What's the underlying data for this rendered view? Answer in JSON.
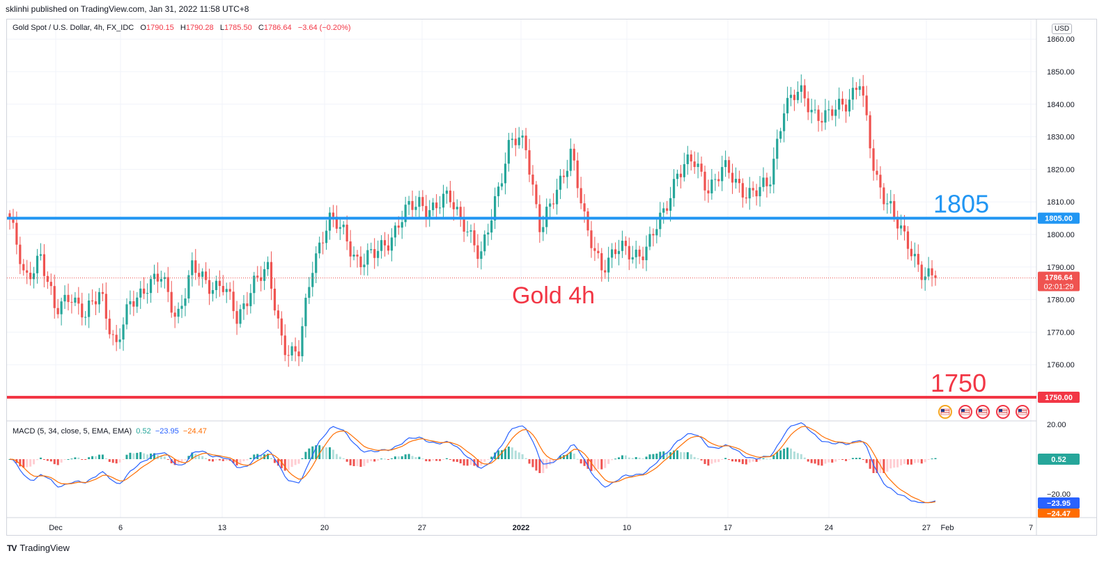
{
  "publisher_line": "sklinhi published on TradingView.com, Jan 31, 2022 11:58 UTC+8",
  "brand": {
    "logo": "TV",
    "name": "TradingView"
  },
  "legend": {
    "symbol": "Gold Spot / U.S. Dollar, 4h, FX_IDC",
    "o_label": "O",
    "o": "1790.15",
    "h_label": "H",
    "h": "1790.28",
    "l_label": "L",
    "l": "1785.50",
    "c_label": "C",
    "c": "1786.64",
    "change": "−3.64 (−0.20%)"
  },
  "currency": "USD",
  "macd_legend": {
    "title": "MACD (5, 34, close, 5, EMA, EMA)",
    "hist": "0.52",
    "macd": "−23.95",
    "signal": "−24.47"
  },
  "colors": {
    "up": "#26a69a",
    "down": "#ef5350",
    "line_1805": "#2196f3",
    "line_1750": "#f23645",
    "macd_line": "#2962ff",
    "signal_line": "#ff6d00",
    "grid": "#f0f3fa"
  },
  "chart_data": {
    "type": "candlestick",
    "title": "Gold 4h",
    "ylim": [
      1750,
      1865
    ],
    "y_ticks": [
      "1860.00",
      "1850.00",
      "1840.00",
      "1830.00",
      "1820.00",
      "1810.00",
      "1800.00",
      "1790.00",
      "1780.00",
      "1770.00",
      "1760.00"
    ],
    "x_ticks": [
      "Dec",
      "6",
      "13",
      "20",
      "27",
      "2022",
      "10",
      "17",
      "24",
      "27",
      "Feb",
      "7"
    ],
    "levels": [
      {
        "label": "1805",
        "value": 1805,
        "axis_label": "1805.00",
        "color": "#2196f3"
      },
      {
        "label": "1750",
        "value": 1750,
        "axis_label": "1750.00",
        "color": "#f23645"
      }
    ],
    "last_price": {
      "value": 1786.64,
      "label": "1786.64",
      "countdown": "02:01:29"
    },
    "close_path": [
      {
        "date": "2021-11-26",
        "close": 1805
      },
      {
        "date": "2021-11-28",
        "close": 1785
      },
      {
        "date": "2021-11-29",
        "close": 1795
      },
      {
        "date": "2021-11-30",
        "close": 1775
      },
      {
        "date": "2021-12-01",
        "close": 1783
      },
      {
        "date": "2021-12-02",
        "close": 1774
      },
      {
        "date": "2021-12-03",
        "close": 1783
      },
      {
        "date": "2021-12-04",
        "close": 1765
      },
      {
        "date": "2021-12-06",
        "close": 1779
      },
      {
        "date": "2021-12-07",
        "close": 1785
      },
      {
        "date": "2021-12-08",
        "close": 1786
      },
      {
        "date": "2021-12-09",
        "close": 1775
      },
      {
        "date": "2021-12-10",
        "close": 1789
      },
      {
        "date": "2021-12-11",
        "close": 1785
      },
      {
        "date": "2021-12-13",
        "close": 1785
      },
      {
        "date": "2021-12-14",
        "close": 1773
      },
      {
        "date": "2021-12-15",
        "close": 1786
      },
      {
        "date": "2021-12-16",
        "close": 1788
      },
      {
        "date": "2021-12-17",
        "close": 1767
      },
      {
        "date": "2021-12-17T16",
        "close": 1762
      },
      {
        "date": "2021-12-18",
        "close": 1792
      },
      {
        "date": "2021-12-19",
        "close": 1805
      },
      {
        "date": "2021-12-20",
        "close": 1800
      },
      {
        "date": "2021-12-21",
        "close": 1792
      },
      {
        "date": "2021-12-22",
        "close": 1793
      },
      {
        "date": "2021-12-23",
        "close": 1799
      },
      {
        "date": "2021-12-24",
        "close": 1806
      },
      {
        "date": "2021-12-25",
        "close": 1810
      },
      {
        "date": "2021-12-27",
        "close": 1808
      },
      {
        "date": "2021-12-28",
        "close": 1811
      },
      {
        "date": "2021-12-29",
        "close": 1804
      },
      {
        "date": "2021-12-30",
        "close": 1791
      },
      {
        "date": "2021-12-31",
        "close": 1812
      },
      {
        "date": "2022-01-01",
        "close": 1828
      },
      {
        "date": "2022-01-02",
        "close": 1828
      },
      {
        "date": "2022-01-03",
        "close": 1801
      },
      {
        "date": "2022-01-04",
        "close": 1812
      },
      {
        "date": "2022-01-06",
        "close": 1827
      },
      {
        "date": "2022-01-07",
        "close": 1800
      },
      {
        "date": "2022-01-08",
        "close": 1791
      },
      {
        "date": "2022-01-09",
        "close": 1795
      },
      {
        "date": "2022-01-10",
        "close": 1794
      },
      {
        "date": "2022-01-11",
        "close": 1796
      },
      {
        "date": "2022-01-12",
        "close": 1805
      },
      {
        "date": "2022-01-13",
        "close": 1820
      },
      {
        "date": "2022-01-14",
        "close": 1822
      },
      {
        "date": "2022-01-15",
        "close": 1815
      },
      {
        "date": "2022-01-17",
        "close": 1820
      },
      {
        "date": "2022-01-18",
        "close": 1815
      },
      {
        "date": "2022-01-19",
        "close": 1813
      },
      {
        "date": "2022-01-20",
        "close": 1814
      },
      {
        "date": "2022-01-21",
        "close": 1840
      },
      {
        "date": "2022-01-22",
        "close": 1843
      },
      {
        "date": "2022-01-23",
        "close": 1838
      },
      {
        "date": "2022-01-24",
        "close": 1836
      },
      {
        "date": "2022-01-25",
        "close": 1840
      },
      {
        "date": "2022-01-26",
        "close": 1848
      },
      {
        "date": "2022-01-27",
        "close": 1817
      },
      {
        "date": "2022-01-27T16",
        "close": 1810
      },
      {
        "date": "2022-01-28",
        "close": 1797
      },
      {
        "date": "2022-01-29",
        "close": 1790
      },
      {
        "date": "2022-01-30",
        "close": 1786.64
      }
    ],
    "macd": {
      "ylim": [
        -25,
        22
      ],
      "y_ticks": [
        "20.00",
        "−20.00"
      ],
      "hist_last": 0.52,
      "macd_last": -23.95,
      "signal_last": -24.47
    }
  }
}
